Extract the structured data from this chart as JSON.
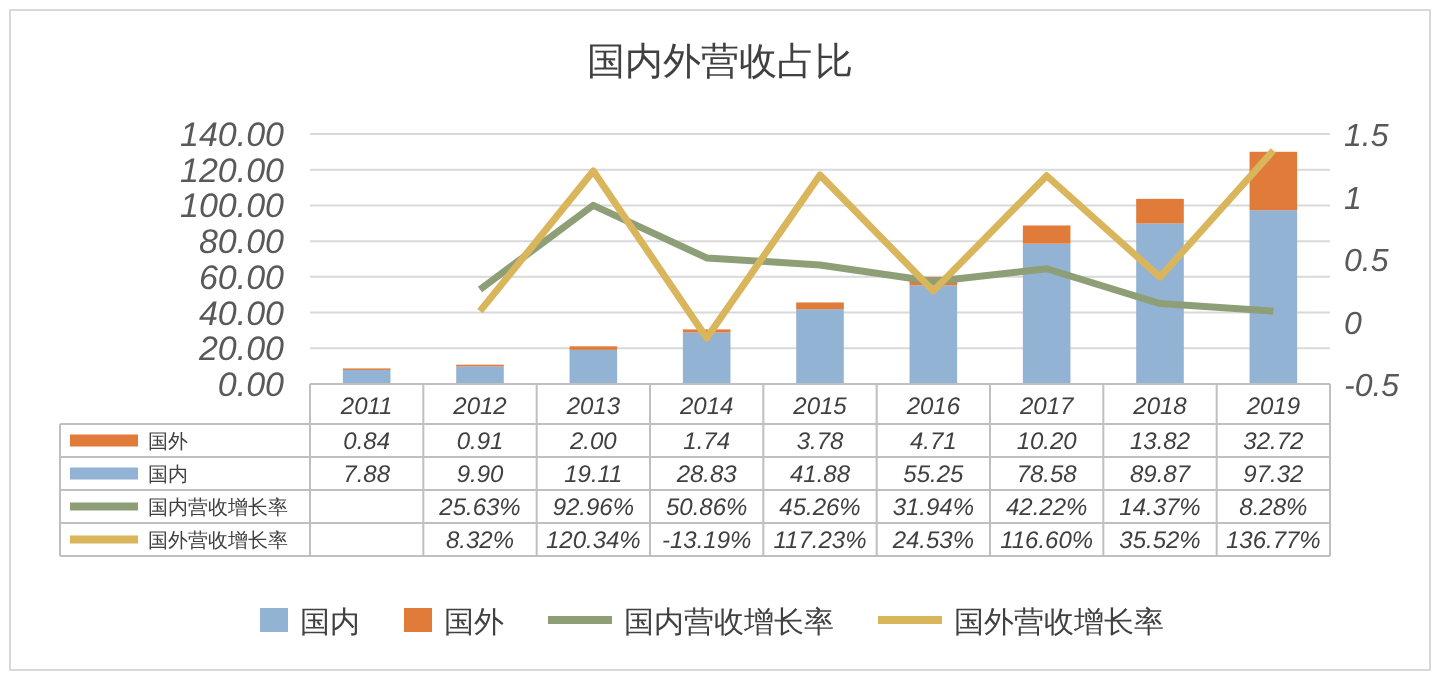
{
  "chart_data": {
    "type": "bar",
    "title": "国内外营收占比",
    "categories": [
      "2011",
      "2012",
      "2013",
      "2014",
      "2015",
      "2016",
      "2017",
      "2018",
      "2019"
    ],
    "stacked": true,
    "series": [
      {
        "name": "国内",
        "color": "#93b3d4",
        "values": [
          7.88,
          9.9,
          19.11,
          28.83,
          41.88,
          55.25,
          78.58,
          89.87,
          97.32
        ],
        "value_labels": [
          "7.88",
          "9.90",
          "19.11",
          "28.83",
          "41.88",
          "55.25",
          "78.58",
          "89.87",
          "97.32"
        ]
      },
      {
        "name": "国外",
        "color": "#e07b39",
        "values": [
          0.84,
          0.91,
          2.0,
          1.74,
          3.78,
          4.71,
          10.2,
          13.82,
          32.72
        ],
        "value_labels": [
          "0.84",
          "0.91",
          "2.00",
          "1.74",
          "3.78",
          "4.71",
          "10.20",
          "13.82",
          "32.72"
        ]
      },
      {
        "name": "国内营收增长率",
        "type": "line",
        "axis": "y2",
        "color": "#8e9f78",
        "values": [
          null,
          0.2563,
          0.9296,
          0.5086,
          0.4526,
          0.3194,
          0.4222,
          0.1437,
          0.0828
        ],
        "value_labels": [
          null,
          "25.63%",
          "92.96%",
          "50.86%",
          "45.26%",
          "31.94%",
          "42.22%",
          "14.37%",
          "8.28%"
        ]
      },
      {
        "name": "国外营收增长率",
        "type": "line",
        "axis": "y2",
        "color": "#d9b65c",
        "values": [
          null,
          0.0832,
          1.2034,
          -0.1319,
          1.1723,
          0.2453,
          1.166,
          0.3552,
          1.3677
        ],
        "value_labels": [
          null,
          "8.32%",
          "120.34%",
          "-13.19%",
          "117.23%",
          "24.53%",
          "116.60%",
          "35.52%",
          "136.77%"
        ]
      }
    ],
    "ylim": [
      0,
      140
    ],
    "yticks": [
      {
        "value": 0,
        "label": "0.00"
      },
      {
        "value": 20,
        "label": "20.00"
      },
      {
        "value": 40,
        "label": "40.00"
      },
      {
        "value": 60,
        "label": "60.00"
      },
      {
        "value": 80,
        "label": "80.00"
      },
      {
        "value": 100,
        "label": "100.00"
      },
      {
        "value": 120,
        "label": "120.00"
      },
      {
        "value": 140,
        "label": "140.00"
      }
    ],
    "y2lim": [
      -0.5,
      1.5
    ],
    "y2ticks": [
      -0.5,
      0,
      0.5,
      1,
      1.5
    ],
    "grid": "y",
    "legend": "bottom"
  }
}
